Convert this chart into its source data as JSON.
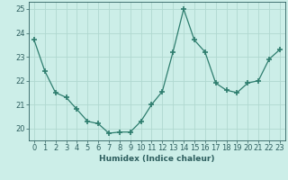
{
  "x": [
    0,
    1,
    2,
    3,
    4,
    5,
    6,
    7,
    8,
    9,
    10,
    11,
    12,
    13,
    14,
    15,
    16,
    17,
    18,
    19,
    20,
    21,
    22,
    23
  ],
  "y": [
    23.7,
    22.4,
    21.5,
    21.3,
    20.8,
    20.3,
    20.2,
    19.8,
    19.85,
    19.85,
    20.3,
    21.0,
    21.55,
    23.2,
    25.0,
    23.7,
    23.2,
    21.9,
    21.6,
    21.5,
    21.9,
    22.0,
    22.9,
    23.3
  ],
  "line_color": "#2e7d6e",
  "marker": "+",
  "marker_size": 4,
  "marker_linewidth": 1.2,
  "bg_color": "#cceee8",
  "grid_color": "#b0d8d0",
  "xlabel": "Humidex (Indice chaleur)",
  "ylim": [
    19.5,
    25.3
  ],
  "xlim": [
    -0.5,
    23.5
  ],
  "yticks": [
    20,
    21,
    22,
    23,
    24,
    25
  ],
  "xtick_labels": [
    "0",
    "1",
    "2",
    "3",
    "4",
    "5",
    "6",
    "7",
    "8",
    "9",
    "10",
    "11",
    "12",
    "13",
    "14",
    "15",
    "16",
    "17",
    "18",
    "19",
    "20",
    "21",
    "22",
    "23"
  ],
  "font_color": "#2e5f5f",
  "label_fontsize": 6.5,
  "tick_fontsize": 6.0,
  "linewidth": 0.9
}
